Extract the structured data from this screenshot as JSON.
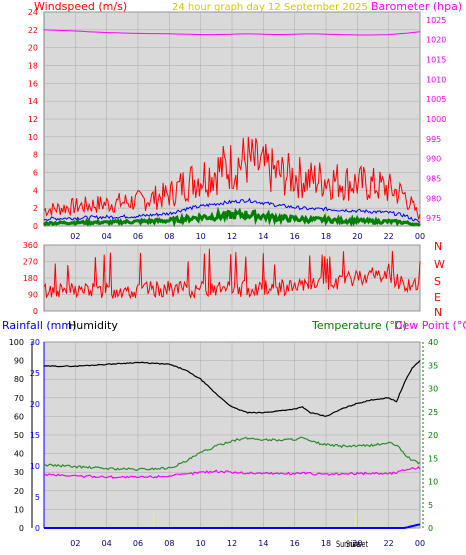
{
  "header": {
    "wind_title": "Windspeed (m/s)",
    "graph_title": "24 hour graph day   12 September 2025",
    "baro_title": "Barometer (hpa)"
  },
  "lower_header": {
    "rain_title": "Rainfall (mm)",
    "humidity_title": "Humidity",
    "temp_title": "Temperature (°C)",
    "dew_title": "Dew Point (°C)"
  },
  "compass": [
    "N",
    "W",
    "S",
    "E",
    "N"
  ],
  "sun_labels": {
    "sunrise": "Sunrise",
    "sunset": "Sunset"
  },
  "colors": {
    "wind_gust": "#ff0000",
    "wind_avg": "#0000ff",
    "wind_min": "#008000",
    "barometer": "#ff00ff",
    "direction": "#ff0000",
    "humidity": "#000000",
    "temperature": "#2e8b2e",
    "dewpoint": "#ff00ff",
    "rainfall": "#0000ff",
    "axis_left": "#ff0000",
    "axis_right": "#ff00ff",
    "plot_bg": "#d9d9d9",
    "grid": "#aaaaaa"
  },
  "chart_data": [
    {
      "name": "wind-barometer",
      "type": "line",
      "title": "24 hour graph day   12 September 2025",
      "x_ticks": [
        "02",
        "04",
        "06",
        "08",
        "10",
        "12",
        "14",
        "16",
        "18",
        "20",
        "22",
        "00"
      ],
      "left_axis": {
        "label": "Windspeed (m/s)",
        "ticks": [
          0,
          2,
          4,
          6,
          8,
          10,
          12,
          14,
          16,
          18,
          20,
          22,
          24
        ],
        "ylim": [
          0,
          24
        ]
      },
      "right_axis": {
        "label": "Barometer (hpa)",
        "ticks": [
          975,
          980,
          985,
          990,
          995,
          1000,
          1005,
          1010,
          1015,
          1020,
          1025
        ],
        "ylim": [
          973,
          1027
        ]
      },
      "x_hours": [
        0,
        2,
        4,
        6,
        8,
        9,
        10,
        11,
        12,
        13,
        14,
        15,
        16,
        17,
        18,
        19,
        20,
        21,
        22,
        23,
        24
      ],
      "series": [
        {
          "key": "gust",
          "axis": "left",
          "values": [
            1.8,
            2.2,
            2.5,
            2.8,
            3.5,
            4.8,
            5.5,
            6.2,
            6.8,
            7.4,
            6.5,
            5.8,
            5.6,
            5.2,
            5.3,
            5.0,
            4.8,
            4.6,
            4.2,
            3.5,
            1.0
          ]
        },
        {
          "key": "average",
          "axis": "left",
          "values": [
            0.8,
            0.9,
            1.0,
            1.1,
            1.4,
            1.9,
            2.2,
            2.5,
            2.7,
            2.9,
            2.6,
            2.3,
            2.1,
            1.9,
            1.9,
            1.8,
            1.7,
            1.6,
            1.5,
            1.2,
            0.4
          ]
        },
        {
          "key": "minimum",
          "axis": "left",
          "values": [
            0.3,
            0.4,
            0.4,
            0.5,
            0.6,
            0.8,
            1.0,
            1.1,
            1.2,
            1.3,
            1.1,
            0.9,
            0.8,
            0.7,
            0.7,
            0.6,
            0.6,
            0.5,
            0.5,
            0.4,
            0.1
          ]
        },
        {
          "key": "barometer",
          "axis": "right",
          "values": [
            1022.5,
            1022.2,
            1021.8,
            1021.6,
            1021.5,
            1021.4,
            1021.3,
            1021.3,
            1021.4,
            1021.5,
            1021.4,
            1021.3,
            1021.4,
            1021.5,
            1021.4,
            1021.3,
            1021.2,
            1021.2,
            1021.3,
            1021.6,
            1022.0
          ]
        }
      ]
    },
    {
      "name": "wind-direction",
      "type": "scatter",
      "left_axis": {
        "ticks": [
          0,
          90,
          180,
          270,
          360
        ],
        "ylim": [
          0,
          360
        ]
      },
      "x_hours": [
        0,
        2,
        4,
        6,
        8,
        10,
        12,
        14,
        16,
        18,
        19,
        20,
        21,
        22,
        23,
        24
      ],
      "series": [
        {
          "key": "direction",
          "values": [
            110,
            115,
            110,
            115,
            120,
            115,
            120,
            125,
            130,
            140,
            160,
            185,
            200,
            190,
            150,
            130
          ]
        }
      ]
    },
    {
      "name": "rain-humidity-temperature",
      "type": "line",
      "x_ticks": [
        "02",
        "04",
        "06",
        "08",
        "10",
        "12",
        "14",
        "16",
        "18",
        "20",
        "22",
        "00"
      ],
      "left_axis_outer": {
        "label": "Humidity",
        "ticks": [
          0,
          10,
          20,
          30,
          40,
          50,
          60,
          70,
          80,
          90,
          100
        ],
        "ylim": [
          0,
          100
        ]
      },
      "left_axis_inner": {
        "label": "Rainfall (mm)",
        "ticks": [
          0,
          5,
          10,
          15,
          20,
          25,
          30
        ],
        "ylim": [
          0,
          30
        ]
      },
      "right_axis": {
        "label": "Temperature (°C)",
        "ticks": [
          0,
          5,
          10,
          15,
          20,
          25,
          30,
          35,
          40
        ],
        "ylim": [
          0,
          40
        ]
      },
      "sun_markers_hour": {
        "sunrise": 7.0,
        "sunset": 19.9
      },
      "x_hours": [
        0,
        2,
        4,
        6,
        8,
        9,
        10,
        11,
        12,
        13,
        14,
        15,
        16,
        16.5,
        17,
        18,
        19,
        20,
        21,
        22,
        22.5,
        23,
        23.5,
        24
      ],
      "series": [
        {
          "key": "humidity",
          "axis": "left_outer",
          "values": [
            87,
            87,
            88,
            89,
            88,
            85,
            80,
            72,
            65,
            62,
            62,
            63,
            64,
            65,
            62,
            60,
            64,
            67,
            69,
            70,
            68,
            78,
            86,
            90
          ]
        },
        {
          "key": "temperature",
          "axis": "right",
          "values": [
            13.6,
            13.2,
            12.8,
            12.6,
            12.9,
            14.2,
            16.2,
            17.6,
            18.8,
            19.3,
            19.0,
            18.9,
            19.1,
            19.4,
            18.6,
            17.9,
            17.6,
            17.6,
            17.8,
            18.3,
            17.8,
            16.0,
            14.5,
            14.0
          ]
        },
        {
          "key": "dewpoint",
          "axis": "right",
          "values": [
            11.5,
            11.2,
            11.0,
            10.9,
            11.2,
            11.5,
            12.0,
            12.2,
            12.0,
            11.8,
            11.8,
            11.7,
            11.7,
            11.9,
            11.7,
            11.5,
            11.6,
            11.7,
            11.8,
            11.7,
            11.9,
            12.5,
            12.9,
            12.9
          ]
        },
        {
          "key": "rainfall",
          "axis": "left_inner",
          "values": [
            0,
            0,
            0,
            0,
            0,
            0,
            0,
            0,
            0,
            0,
            0,
            0,
            0,
            0,
            0,
            0,
            0,
            0,
            0,
            0,
            0,
            0,
            0.3,
            0.6
          ]
        }
      ]
    }
  ]
}
